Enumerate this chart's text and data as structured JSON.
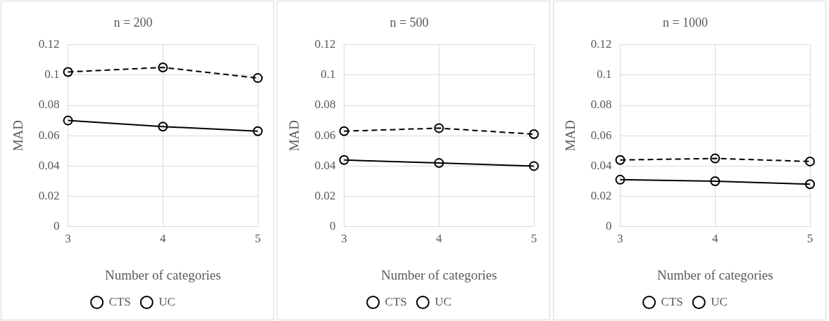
{
  "chart_data": [
    {
      "type": "line",
      "title": "n = 200",
      "xlabel": "Number of categories",
      "ylabel": "MAD",
      "categories": [
        "3",
        "4",
        "5"
      ],
      "ylim": [
        0,
        0.12
      ],
      "yticks": [
        0,
        0.02,
        0.04,
        0.06,
        0.08,
        0.1,
        0.12
      ],
      "grid": true,
      "legend": "bottom",
      "marker": "circle",
      "series": [
        {
          "name": "CTS",
          "color": "#000000",
          "line_style": "solid",
          "values": [
            0.07,
            0.066,
            0.063
          ]
        },
        {
          "name": "UC",
          "color": "#000000",
          "line_style": "dashed",
          "values": [
            0.102,
            0.105,
            0.098
          ]
        }
      ]
    },
    {
      "type": "line",
      "title": "n = 500",
      "xlabel": "Number of categories",
      "ylabel": "MAD",
      "categories": [
        "3",
        "4",
        "5"
      ],
      "ylim": [
        0,
        0.12
      ],
      "yticks": [
        0,
        0.02,
        0.04,
        0.06,
        0.08,
        0.1,
        0.12
      ],
      "grid": true,
      "legend": "bottom",
      "marker": "circle",
      "series": [
        {
          "name": "CTS",
          "color": "#000000",
          "line_style": "solid",
          "values": [
            0.044,
            0.042,
            0.04
          ]
        },
        {
          "name": "UC",
          "color": "#000000",
          "line_style": "dashed",
          "values": [
            0.063,
            0.065,
            0.061
          ]
        }
      ]
    },
    {
      "type": "line",
      "title": "n = 1000",
      "xlabel": "Number of categories",
      "ylabel": "MAD",
      "categories": [
        "3",
        "4",
        "5"
      ],
      "ylim": [
        0,
        0.12
      ],
      "yticks": [
        0,
        0.02,
        0.04,
        0.06,
        0.08,
        0.1,
        0.12
      ],
      "grid": true,
      "legend": "bottom",
      "marker": "circle",
      "series": [
        {
          "name": "CTS",
          "color": "#000000",
          "line_style": "solid",
          "values": [
            0.031,
            0.03,
            0.028
          ]
        },
        {
          "name": "UC",
          "color": "#000000",
          "line_style": "dashed",
          "values": [
            0.044,
            0.045,
            0.043
          ]
        }
      ]
    }
  ]
}
